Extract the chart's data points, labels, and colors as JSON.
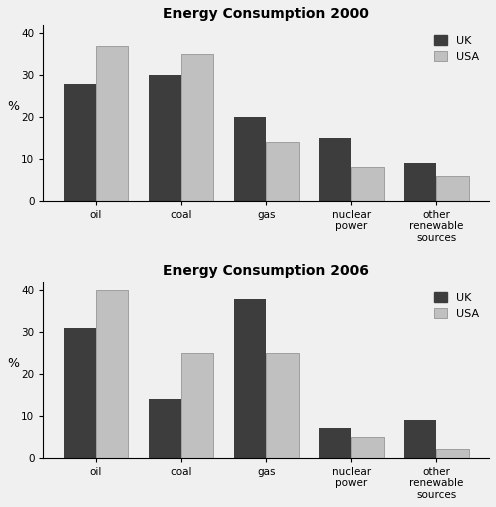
{
  "chart1": {
    "title": "Energy Consumption 2000",
    "categories": [
      "oil",
      "coal",
      "gas",
      "nuclear\npower",
      "other\nrenewable\nsources"
    ],
    "UK": [
      28,
      30,
      20,
      15,
      9
    ],
    "USA": [
      37,
      35,
      14,
      8,
      6
    ]
  },
  "chart2": {
    "title": "Energy Consumption 2006",
    "categories": [
      "oil",
      "coal",
      "gas",
      "nuclear\npower",
      "other\nrenewable\nsources"
    ],
    "UK": [
      31,
      14,
      38,
      7,
      9
    ],
    "USA": [
      40,
      25,
      25,
      5,
      2
    ]
  },
  "uk_color": "#3d3d3d",
  "usa_color": "#c0c0c0",
  "usa_edge_color": "#888888",
  "ylabel": "%",
  "ylim": [
    0,
    42
  ],
  "yticks": [
    0,
    10,
    20,
    30,
    40
  ],
  "bar_width": 0.38,
  "title_fontsize": 10,
  "legend_fontsize": 8,
  "tick_fontsize": 7.5,
  "ylabel_fontsize": 9,
  "bg_color": "#f0f0f0",
  "fig_bg_color": "#f0f0f0"
}
